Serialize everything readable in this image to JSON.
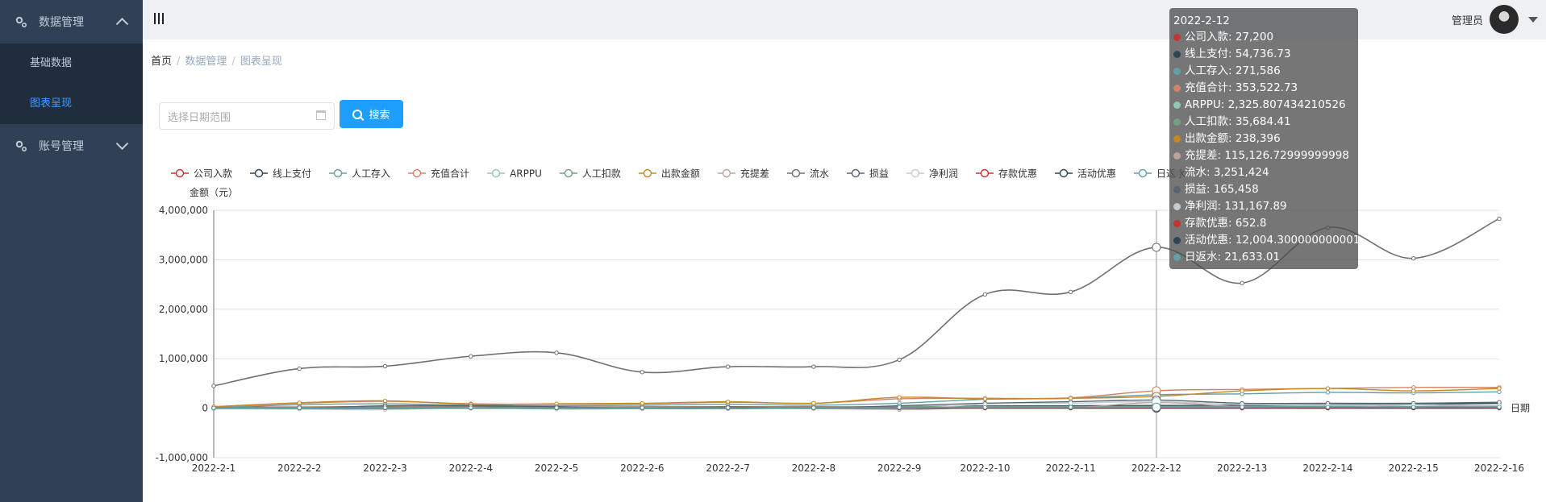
{
  "sidebar": {
    "menus": [
      {
        "label": "数据管理",
        "items": [
          "基础数据",
          "图表呈现"
        ],
        "active_item": 1
      },
      {
        "label": "账号管理"
      }
    ]
  },
  "header": {
    "user_name": "管理员"
  },
  "breadcrumb": [
    "首页",
    "数据管理",
    "图表呈现"
  ],
  "search": {
    "placeholder": "选择日期范围",
    "button_label": "搜索"
  },
  "chart_data": {
    "type": "line",
    "ylabel": "金额（元）",
    "xlabel": "日期",
    "ylim": [
      -1000000,
      4000000
    ],
    "y_ticks": [
      "4,000,000",
      "3,000,000",
      "2,000,000",
      "1,000,000",
      "0",
      "-1,000,000"
    ],
    "categories": [
      "2022-2-1",
      "2022-2-2",
      "2022-2-3",
      "2022-2-4",
      "2022-2-5",
      "2022-2-6",
      "2022-2-7",
      "2022-2-8",
      "2022-2-9",
      "2022-2-10",
      "2022-2-11",
      "2022-2-12",
      "2022-2-13",
      "2022-2-14",
      "2022-2-15",
      "2022-2-16"
    ],
    "legend_position": "top-left",
    "grid": true,
    "series": [
      {
        "name": "公司入款",
        "color": "#c23531",
        "values": [
          20000,
          25000,
          30000,
          28000,
          25000,
          26000,
          30000,
          28000,
          27000,
          28000,
          27000,
          27200,
          27000,
          26000,
          25000,
          24000
        ]
      },
      {
        "name": "线上支付",
        "color": "#2f4554",
        "values": [
          -5000,
          10000,
          15000,
          20000,
          15000,
          20000,
          25000,
          20000,
          30000,
          45000,
          50000,
          54736.73,
          60000,
          70000,
          80000,
          100000
        ]
      },
      {
        "name": "人工存入",
        "color": "#61a0a8",
        "values": [
          15000,
          70000,
          90000,
          60000,
          50000,
          60000,
          80000,
          60000,
          100000,
          180000,
          200000,
          271586,
          290000,
          320000,
          310000,
          330000
        ]
      },
      {
        "name": "充值合计",
        "color": "#d48265",
        "values": [
          30000,
          100000,
          140000,
          90000,
          80000,
          90000,
          120000,
          100000,
          190000,
          200000,
          210000,
          353522.73,
          380000,
          400000,
          420000,
          420000
        ]
      },
      {
        "name": "ARPPU",
        "color": "#91c7ae",
        "values": [
          1500,
          1800,
          2000,
          1900,
          1800,
          1900,
          2000,
          1900,
          2100,
          2200,
          2300,
          2325.81,
          2300,
          2400,
          2350,
          2400
        ]
      },
      {
        "name": "人工扣款",
        "color": "#749f83",
        "values": [
          10000,
          20000,
          25000,
          20000,
          18000,
          20000,
          25000,
          22000,
          30000,
          32000,
          34000,
          35684.41,
          36000,
          37000,
          36000,
          38000
        ]
      },
      {
        "name": "出款金额",
        "color": "#ca8622",
        "values": [
          30000,
          110000,
          150000,
          80000,
          90000,
          100000,
          130000,
          100000,
          220000,
          190000,
          200000,
          238396,
          350000,
          400000,
          350000,
          400000
        ]
      },
      {
        "name": "充提差",
        "color": "#bda29a",
        "values": [
          0,
          -10000,
          -10000,
          10000,
          -10000,
          -10000,
          -10000,
          0,
          -30000,
          10000,
          10000,
          115126.73,
          30000,
          0,
          70000,
          20000
        ]
      },
      {
        "name": "流水",
        "color": "#6e7074",
        "values": [
          450000,
          800000,
          850000,
          1050000,
          1120000,
          730000,
          840000,
          840000,
          980000,
          2300000,
          2350000,
          3251424,
          2530000,
          3650000,
          3030000,
          3830000
        ]
      },
      {
        "name": "损益",
        "color": "#546570",
        "values": [
          0,
          0,
          50000,
          50000,
          30000,
          0,
          20000,
          0,
          50000,
          100000,
          130000,
          165458,
          100000,
          100000,
          100000,
          120000
        ]
      },
      {
        "name": "净利润",
        "color": "#c4ccd3",
        "values": [
          -10000,
          -20000,
          -30000,
          10000,
          -20000,
          -10000,
          0,
          -10000,
          -20000,
          80000,
          100000,
          131167.89,
          80000,
          60000,
          70000,
          60000
        ]
      },
      {
        "name": "存款优惠",
        "color": "#c23531",
        "values": [
          200,
          400,
          600,
          500,
          400,
          500,
          600,
          500,
          600,
          620,
          640,
          652.8,
          660,
          670,
          680,
          690
        ]
      },
      {
        "name": "活动优惠",
        "color": "#2f4554",
        "values": [
          3000,
          5000,
          6000,
          5000,
          4000,
          5000,
          6000,
          5000,
          8000,
          10000,
          11000,
          12004.3,
          11000,
          10000,
          10000,
          10000
        ]
      },
      {
        "name": "日返水",
        "color": "#61a0a8",
        "values": [
          5000,
          8000,
          10000,
          9000,
          8000,
          9000,
          10000,
          9000,
          15000,
          18000,
          20000,
          21633.01,
          22000,
          23000,
          22000,
          24000
        ]
      }
    ]
  },
  "tooltip": {
    "title": "2022-2-12",
    "rows": [
      {
        "text": "公司入款: 27,200",
        "color": "#c23531"
      },
      {
        "text": "线上支付: 54,736.73",
        "color": "#2f4554"
      },
      {
        "text": "人工存入: 271,586",
        "color": "#61a0a8"
      },
      {
        "text": "充值合计: 353,522.73",
        "color": "#d48265"
      },
      {
        "text": "ARPPU: 2,325.807434210526",
        "color": "#91c7ae"
      },
      {
        "text": "人工扣款: 35,684.41",
        "color": "#749f83"
      },
      {
        "text": "出款金额: 238,396",
        "color": "#ca8622"
      },
      {
        "text": "充提差: 115,126.72999999998",
        "color": "#bda29a"
      },
      {
        "text": "流水: 3,251,424",
        "color": "#6e7074"
      },
      {
        "text": "损益: 165,458",
        "color": "#546570"
      },
      {
        "text": "净利润: 131,167.89",
        "color": "#c4ccd3"
      },
      {
        "text": "存款优惠: 652.8",
        "color": "#c23531"
      },
      {
        "text": "活动优惠: 12,004.300000000001",
        "color": "#2f4554"
      },
      {
        "text": "日返水: 21,633.01",
        "color": "#61a0a8"
      }
    ]
  }
}
